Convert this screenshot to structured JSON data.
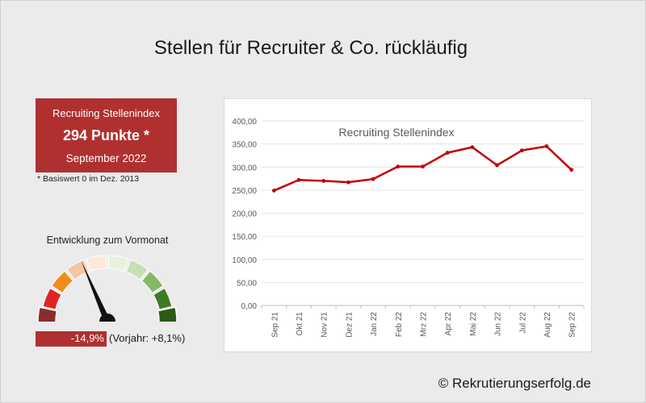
{
  "page": {
    "title": "Stellen für Recruiter & Co. rückläufig",
    "copyright": "© Rekrutierungserfolg.de"
  },
  "index_box": {
    "label": "Recruiting Stellenindex",
    "value": "294 Punkte *",
    "month": "September 2022",
    "footnote": "* Basiswert 0 im Dez. 2013"
  },
  "gauge": {
    "title": "Entwicklung zum Vormonat",
    "change": "-14,9%",
    "previous_year": "(Vorjahr: +8,1%)",
    "change_percent": -14.9,
    "segments": [
      "#e02424",
      "#f08c1c",
      "#f4c7a4",
      "#fde9da",
      "#e6f2dc",
      "#c6e0b4",
      "#86b86a",
      "#3f7a27"
    ],
    "dark_ends": [
      "#8b2c2c",
      "#2c5a17"
    ]
  },
  "colors": {
    "accent": "#b03030",
    "line": "#c00000",
    "background": "#ebebeb"
  },
  "chart_data": {
    "type": "line",
    "title": "Recruiting Stellenindex",
    "categories": [
      "Sep 21",
      "Okt 21",
      "Nov 21",
      "Dez 21",
      "Jan 22",
      "Feb 22",
      "Mrz 22",
      "Apr 22",
      "Mai 22",
      "Jun 22",
      "Jul 22",
      "Aug 22",
      "Sep 22"
    ],
    "values": [
      249,
      272,
      270,
      267,
      274,
      301,
      301,
      331,
      343,
      304,
      336,
      345,
      294
    ],
    "y_ticks": [
      "0,00",
      "50,00",
      "100,00",
      "150,00",
      "200,00",
      "250,00",
      "300,00",
      "350,00",
      "400,00"
    ],
    "ylim": [
      0,
      400
    ],
    "grid": true,
    "legend": "none"
  }
}
